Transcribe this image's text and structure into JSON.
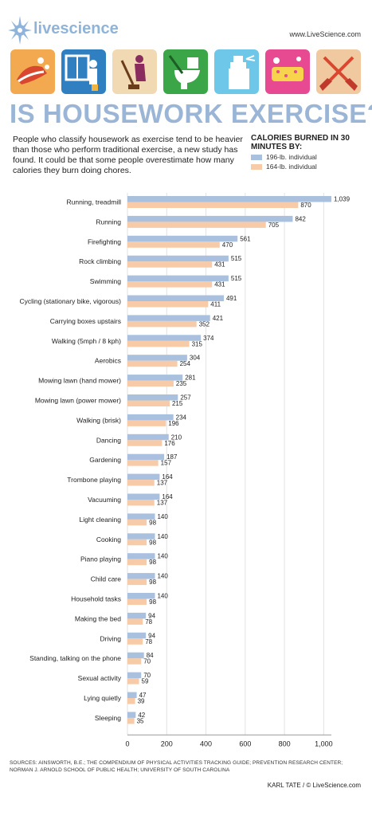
{
  "brand": "livescience",
  "site_url": "www.LiveScience.com",
  "headline": "IS HOUSEWORK EXERCISE?",
  "intro": "People who classify housework as exercise tend to be heavier than those who perform traditional exercise, a new study has found. It could be that some people overestimate how many calories they burn doing chores.",
  "icons": [
    "cleaning-icon",
    "window-washing-icon",
    "mopping-icon",
    "toilet-cleaning-icon",
    "spray-bottle-icon",
    "sponge-icon",
    "crossed-brooms-icon"
  ],
  "colors": {
    "series_a": "#a9c1de",
    "series_b": "#f8cba8",
    "title": "#9bb5d6"
  },
  "sources": "SOURCES: AINSWORTH, B.E.; THE COMPENDIUM OF PHYSICAL ACTIVITIES TRACKING GUIDE; PREVENTION RESEARCH CENTER; NORMAN J. ARNOLD SCHOOL OF PUBLIC HEALTH; UNIVERSITY OF SOUTH CAROLINA",
  "credit": "KARL TATE / © LiveScience.com",
  "chart_data": {
    "type": "bar",
    "orientation": "horizontal",
    "title": "CALORIES BURNED IN 30 MINUTES BY:",
    "categories": [
      "Running, treadmill",
      "Running",
      "Firefighting",
      "Rock climbing",
      "Swimming",
      "Cycling (stationary bike, vigorous)",
      "Carrying boxes upstairs",
      "Walking (5mph / 8 kph)",
      "Aerobics",
      "Mowing lawn (hand mower)",
      "Mowing lawn (power mower)",
      "Walking (brisk)",
      "Dancing",
      "Gardening",
      "Trombone playing",
      "Vacuuming",
      "Light cleaning",
      "Cooking",
      "Piano playing",
      "Child care",
      "Household tasks",
      "Making the bed",
      "Driving",
      "Standing, talking on the phone",
      "Sexual activity",
      "Lying quietly",
      "Sleeping"
    ],
    "series": [
      {
        "name": "196-lb. individual",
        "color": "#a9c1de",
        "values": [
          1039,
          842,
          561,
          515,
          515,
          491,
          421,
          374,
          304,
          281,
          257,
          234,
          210,
          187,
          164,
          164,
          140,
          140,
          140,
          140,
          140,
          94,
          94,
          84,
          70,
          47,
          42
        ]
      },
      {
        "name": "164-lb. individual",
        "color": "#f8cba8",
        "values": [
          870,
          705,
          470,
          431,
          431,
          411,
          352,
          315,
          254,
          235,
          215,
          196,
          176,
          157,
          137,
          137,
          98,
          98,
          98,
          98,
          98,
          78,
          78,
          70,
          59,
          39,
          35
        ]
      }
    ],
    "value_labels": {
      "a": [
        "1,039",
        "842",
        "561",
        "515",
        "515",
        "491",
        "421",
        "374",
        "304",
        "281",
        "257",
        "234",
        "210",
        "187",
        "164",
        "164",
        "140",
        "140",
        "140",
        "140",
        "140",
        "94",
        "94",
        "84",
        "70",
        "47",
        "42"
      ],
      "b": [
        "870",
        "705",
        "470",
        "431",
        "431",
        "411",
        "352",
        "315",
        "254",
        "235",
        "215",
        "196",
        "176",
        "157",
        "137",
        "137",
        "98",
        "98",
        "98",
        "98",
        "98",
        "78",
        "78",
        "70",
        "59",
        "39",
        "35"
      ]
    },
    "xlim": [
      0,
      1039
    ],
    "xticks": [
      0,
      200,
      400,
      600,
      800,
      1000
    ],
    "xtick_labels": [
      "0",
      "200",
      "400",
      "600",
      "800",
      "1,000"
    ],
    "grid": true,
    "legend": "top-right"
  }
}
